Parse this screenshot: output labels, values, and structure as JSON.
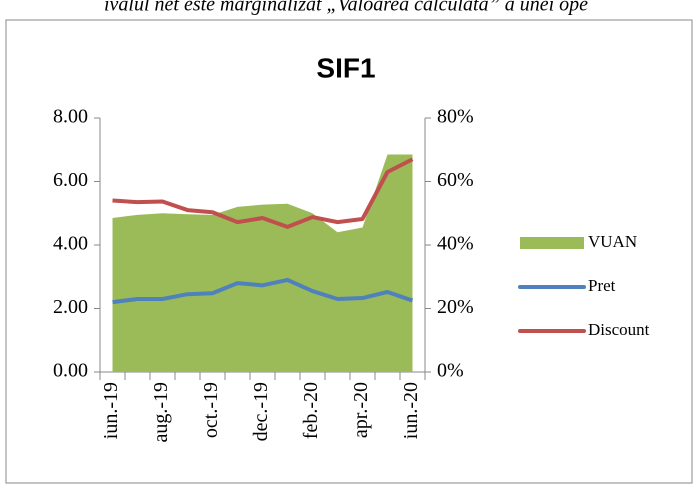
{
  "header_text": "ivalul net este marginalizat „Valoarea calculată” a unei ope",
  "chart_data": {
    "type": "combo",
    "title": "SIF1",
    "categories": [
      "iun.-19",
      null,
      "aug.-19",
      null,
      "oct.-19",
      null,
      "dec.-19",
      null,
      "feb.-20",
      null,
      "apr.-20",
      null,
      "iun.-20"
    ],
    "series": [
      {
        "name": "VUAN",
        "type": "area",
        "color": "#9bbb59",
        "values": [
          4.85,
          4.95,
          5.0,
          4.97,
          4.95,
          5.2,
          5.27,
          5.3,
          5.0,
          4.4,
          4.55,
          6.85,
          6.85
        ]
      },
      {
        "name": "Pret",
        "type": "line",
        "color": "#4f81bd",
        "values": [
          2.2,
          2.3,
          2.3,
          2.45,
          2.48,
          2.8,
          2.73,
          2.9,
          2.55,
          2.3,
          2.33,
          2.52,
          2.25
        ]
      },
      {
        "name": "Discount",
        "type": "line",
        "axis": "y2",
        "color": "#c0504d",
        "values": [
          54,
          53.5,
          53.7,
          51,
          50.3,
          47.2,
          48.5,
          45.7,
          48.8,
          47.2,
          48.2,
          63,
          67
        ]
      }
    ],
    "ylim": [
      0,
      8
    ],
    "yticks": [
      {
        "value": 0,
        "label": "0.00"
      },
      {
        "value": 2,
        "label": "2.00"
      },
      {
        "value": 4,
        "label": "4.00"
      },
      {
        "value": 6,
        "label": "6.00"
      },
      {
        "value": 8,
        "label": "8.00"
      }
    ],
    "y2lim": [
      0,
      80
    ],
    "y2ticks": [
      {
        "value": 0,
        "label": "0%"
      },
      {
        "value": 20,
        "label": "20%"
      },
      {
        "value": 40,
        "label": "40%"
      },
      {
        "value": 60,
        "label": "60%"
      },
      {
        "value": 80,
        "label": "80%"
      }
    ],
    "legend": "right"
  }
}
